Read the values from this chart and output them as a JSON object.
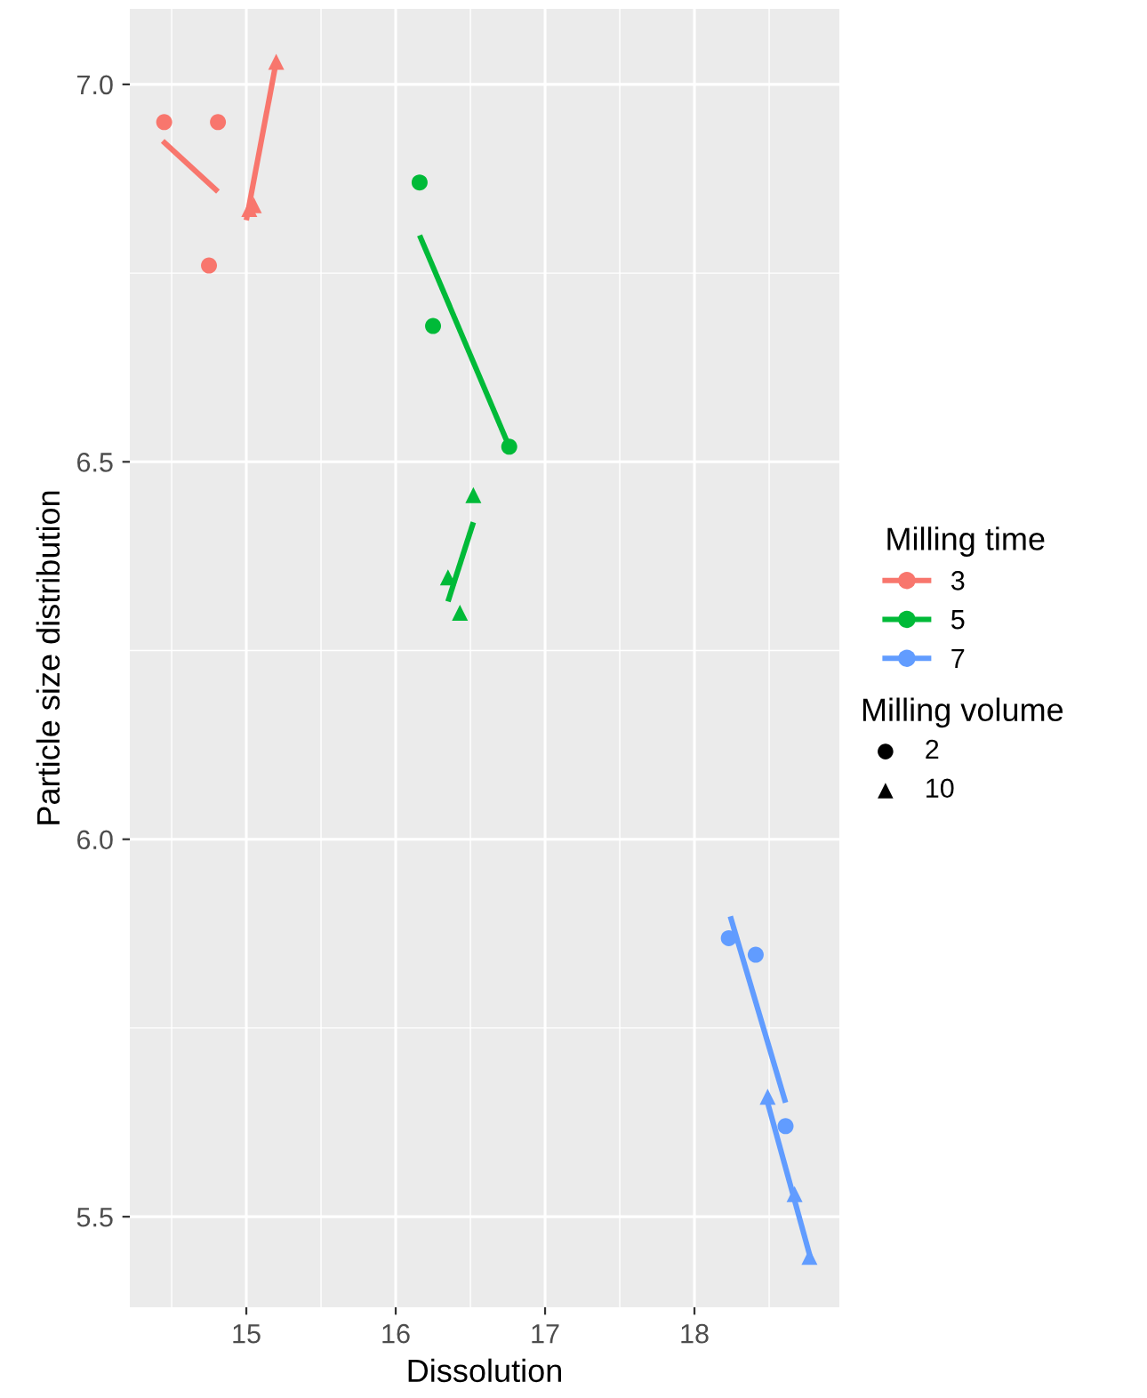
{
  "chart_data": {
    "type": "scatter",
    "xlabel": "Dissolution",
    "ylabel": "Particle size distribution",
    "xlim": [
      14.22,
      18.97
    ],
    "ylim": [
      5.38,
      7.1
    ],
    "xticks": [
      15,
      16,
      17,
      18
    ],
    "yticks": [
      {
        "value": 5.5,
        "label": "5.5"
      },
      {
        "value": 6,
        "label": "6.0"
      },
      {
        "value": 6.5,
        "label": "6.5"
      },
      {
        "value": 7,
        "label": "7.0"
      }
    ],
    "grid": true,
    "legend": "right",
    "series": [
      {
        "name": "3",
        "marker": "circle",
        "color": "#f8766d",
        "x": [
          14.45,
          14.81,
          14.75
        ],
        "values": [
          6.95,
          6.95,
          6.76
        ]
      },
      {
        "marker": "triangle",
        "color": "#f8766d",
        "x": [
          15.02,
          15.05,
          15.2
        ],
        "values": [
          6.835,
          6.84,
          7.03
        ]
      },
      {
        "name": "5",
        "marker": "circle",
        "color": "#00ba38",
        "x": [
          16.16,
          16.25,
          16.76
        ],
        "values": [
          6.87,
          6.68,
          6.52
        ]
      },
      {
        "marker": "triangle",
        "color": "#00ba38",
        "x": [
          16.52,
          16.35,
          16.43
        ],
        "values": [
          6.456,
          6.347,
          6.3
        ]
      },
      {
        "name": "7",
        "marker": "circle",
        "color": "#619cff",
        "x": [
          18.23,
          18.41,
          18.61
        ],
        "values": [
          5.869,
          5.847,
          5.62
        ]
      },
      {
        "marker": "triangle",
        "color": "#619cff",
        "x": [
          18.49,
          18.67,
          18.77
        ],
        "values": [
          5.659,
          5.53,
          5.447
        ]
      },
      {
        "type": "line",
        "color": "#f8766d",
        "x": [
          14.44,
          14.81
        ],
        "values": [
          6.925,
          6.858
        ]
      },
      {
        "type": "line",
        "color": "#f8766d",
        "x": [
          15.0,
          15.2
        ],
        "values": [
          6.82,
          7.03
        ]
      },
      {
        "type": "line",
        "color": "#00ba38",
        "x": [
          16.16,
          16.76
        ],
        "values": [
          6.8,
          6.52
        ]
      },
      {
        "type": "line",
        "color": "#00ba38",
        "x": [
          16.35,
          16.52
        ],
        "values": [
          6.315,
          6.42
        ]
      },
      {
        "type": "line",
        "color": "#619cff",
        "x": [
          18.24,
          18.61
        ],
        "values": [
          5.898,
          5.651
        ]
      },
      {
        "type": "line",
        "color": "#619cff",
        "x": [
          18.49,
          18.78
        ],
        "values": [
          5.651,
          5.443
        ]
      }
    ],
    "legend_title": "Milling time",
    "annotations": [
      "Milling volume",
      "2",
      "10"
    ]
  }
}
